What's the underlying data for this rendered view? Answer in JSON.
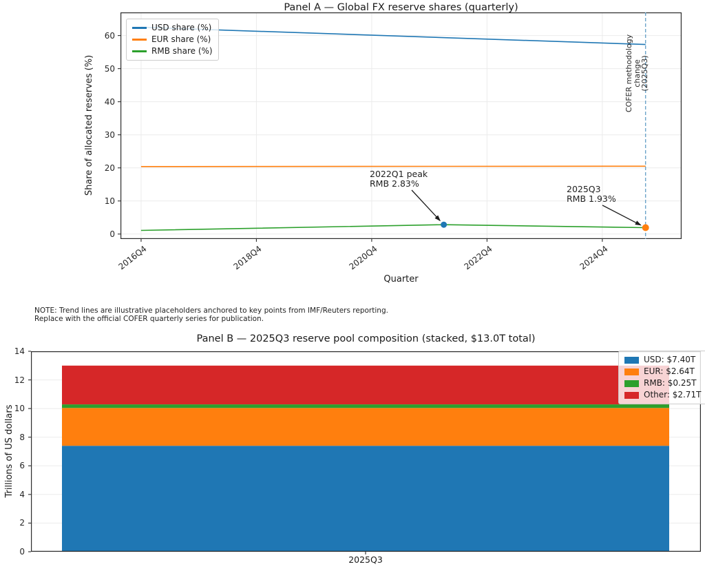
{
  "note": {
    "line1": "NOTE: Trend lines are illustrative placeholders anchored to key points from IMF/Reuters reporting.",
    "line2": "Replace with the official COFER quarterly series for publication."
  },
  "chart_data": [
    {
      "panel": "A",
      "type": "line",
      "title": "Panel A — Global FX reserve shares (quarterly)",
      "xlabel": "Quarter",
      "ylabel": "Share of allocated reserves (%)",
      "x_tick_labels": [
        "2016Q4",
        "2018Q4",
        "2020Q4",
        "2022Q4",
        "2024Q4"
      ],
      "y_ticks": [
        0,
        10,
        20,
        30,
        40,
        50,
        60
      ],
      "ylim": [
        -1.5,
        67
      ],
      "xlim_quarters_from_2016Q4": [
        -1.43,
        37.5
      ],
      "grid": true,
      "legend_position": "upper left",
      "series": [
        {
          "name": "USD share (%)",
          "color": "#1f77b4",
          "points": [
            {
              "quarter": "2016Q4",
              "value": 62.5
            },
            {
              "quarter": "2025Q3",
              "value": 57.3
            }
          ]
        },
        {
          "name": "EUR share (%)",
          "color": "#ff7f0e",
          "points": [
            {
              "quarter": "2016Q4",
              "value": 20.4
            },
            {
              "quarter": "2025Q3",
              "value": 20.5
            }
          ]
        },
        {
          "name": "RMB share (%)",
          "color": "#2ca02c",
          "points": [
            {
              "quarter": "2016Q4",
              "value": 1.1
            },
            {
              "quarter": "2022Q1",
              "value": 2.83
            },
            {
              "quarter": "2025Q3",
              "value": 1.93
            }
          ]
        }
      ],
      "markers": [
        {
          "quarter": "2022Q1",
          "value": 2.83,
          "color": "#1f77b4"
        },
        {
          "quarter": "2025Q3",
          "value": 1.93,
          "color": "#ff7f0e"
        }
      ],
      "vline": {
        "quarter": "2025Q3",
        "color": "#6ba3c9",
        "style": "dashed",
        "label": "COFER methodology change\n(2025Q3)"
      },
      "annotations": [
        {
          "text": "2022Q1 peak\nRMB 2.83%",
          "target_quarter": "2022Q1",
          "target_value": 2.83
        },
        {
          "text": "2025Q3\nRMB 1.93%",
          "target_quarter": "2025Q3",
          "target_value": 1.93
        }
      ]
    },
    {
      "panel": "B",
      "type": "stacked_bar",
      "title": "Panel B — 2025Q3 reserve pool composition (stacked, $13.0T total)",
      "ylabel": "Trillions of US dollars",
      "categories": [
        "2025Q3"
      ],
      "y_ticks": [
        0,
        2,
        4,
        6,
        8,
        10,
        12,
        14
      ],
      "ylim": [
        0,
        14
      ],
      "total_trillions": 13.0,
      "grid": true,
      "legend_position": "upper right",
      "segments": [
        {
          "name": "USD",
          "value_trillions": 7.4,
          "color": "#1f77b4",
          "legend_label": "USD: $7.40T"
        },
        {
          "name": "EUR",
          "value_trillions": 2.64,
          "color": "#ff7f0e",
          "legend_label": "EUR: $2.64T"
        },
        {
          "name": "RMB",
          "value_trillions": 0.25,
          "color": "#2ca02c",
          "legend_label": "RMB: $0.25T"
        },
        {
          "name": "Other",
          "value_trillions": 2.71,
          "color": "#d62728",
          "legend_label": "Other: $2.71T"
        }
      ]
    }
  ]
}
